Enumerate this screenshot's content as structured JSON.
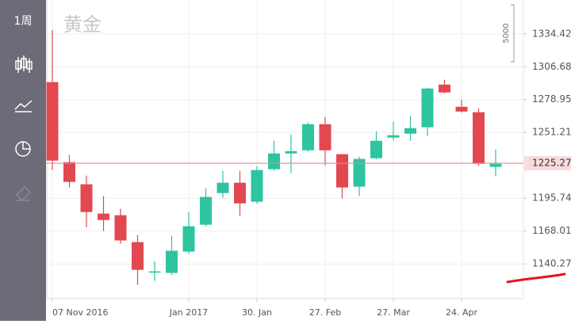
{
  "ui": {
    "period": "1周",
    "scale_label": "5000"
  },
  "chart_data": {
    "type": "candlestick",
    "title": "黄金",
    "categories": [
      "07 Nov 2016",
      null,
      null,
      null,
      null,
      null,
      null,
      null,
      "Jan 2017",
      null,
      null,
      null,
      "30. Jan",
      null,
      null,
      null,
      "27. Feb",
      null,
      null,
      null,
      "27. Mar",
      null,
      null,
      null,
      "24. Apr",
      null,
      null
    ],
    "open": [
      1293.7,
      1226.2,
      1207.5,
      1182.8,
      1181.4,
      1158.7,
      1133.5,
      1132.7,
      1150.7,
      1173.4,
      1200.1,
      1208.8,
      1192.8,
      1220.2,
      1233.5,
      1236.2,
      1258.2,
      1232.9,
      1205.5,
      1229.5,
      1246.9,
      1250.2,
      1255.6,
      1291.6,
      1272.9,
      1268.3,
      1222.2
    ],
    "high": [
      1337.8,
      1232.2,
      1214.8,
      1197.5,
      1186.8,
      1164.7,
      1142.7,
      1164.1,
      1184.1,
      1204.1,
      1218.8,
      1218.8,
      1222.8,
      1244.2,
      1249.6,
      1259.6,
      1264.3,
      1233.0,
      1230.9,
      1252.2,
      1260.3,
      1264.9,
      1289.0,
      1295.7,
      1279.0,
      1271.6,
      1236.9
    ],
    "low": [
      1219.5,
      1204.8,
      1171.4,
      1168.1,
      1157.4,
      1122.6,
      1126.0,
      1131.0,
      1149.0,
      1172.0,
      1196.1,
      1180.8,
      1191.0,
      1219.0,
      1216.8,
      1235.0,
      1223.5,
      1195.5,
      1197.5,
      1228.5,
      1244.2,
      1244.2,
      1248.2,
      1284.0,
      1268.0,
      1223.0,
      1214.2
    ],
    "close": [
      1227.5,
      1209.5,
      1184.1,
      1177.4,
      1160.1,
      1135.3,
      1134.0,
      1151.4,
      1172.1,
      1196.8,
      1208.8,
      1191.4,
      1219.5,
      1233.5,
      1235.5,
      1258.2,
      1236.2,
      1204.8,
      1228.9,
      1244.2,
      1248.9,
      1254.9,
      1288.3,
      1285.0,
      1268.9,
      1224.8,
      1224.8
    ],
    "up_color": "#2ec4a0",
    "down_color": "#e2484f",
    "last_price": 1225.27,
    "ylim": [
      1111,
      1363
    ],
    "yticks": [
      1140.27,
      1168.01,
      1195.74,
      1251.21,
      1278.95,
      1306.68,
      1334.42
    ],
    "grid": true
  }
}
